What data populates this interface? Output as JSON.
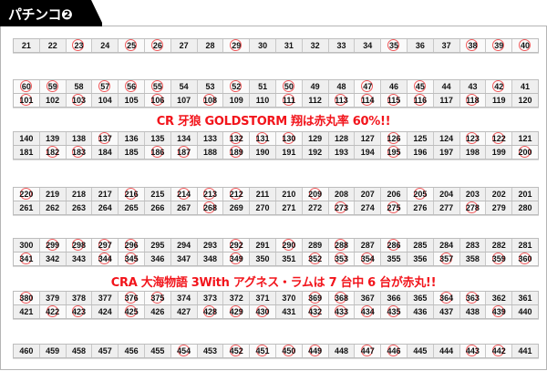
{
  "header": {
    "title": "パチンコ❷",
    "background": "#000000"
  },
  "colors": {
    "circle": "#f0595b",
    "caption": "#f2141b"
  },
  "captions": [
    "CR 牙狼 GOLDSTORM 翔は赤丸率 60%!!",
    "CRA 大海物語 3With アグネス・ラムは 7 台中 6 台が赤丸!!"
  ],
  "blocks": [
    {
      "rows": [
        {
          "numbers": [
            21,
            22,
            23,
            24,
            25,
            26,
            27,
            28,
            29,
            30,
            31,
            32,
            33,
            34,
            35,
            36,
            37,
            38,
            39,
            40
          ],
          "circled": [
            23,
            25,
            26,
            29,
            35,
            38,
            39,
            40
          ]
        }
      ]
    },
    {
      "rows": [
        {
          "numbers": [
            60,
            59,
            58,
            57,
            56,
            55,
            54,
            53,
            52,
            51,
            50,
            49,
            48,
            47,
            46,
            45,
            44,
            43,
            42,
            41
          ],
          "circled": [
            60,
            59,
            57,
            56,
            55,
            52,
            50,
            47,
            45,
            42
          ]
        },
        {
          "numbers": [
            101,
            102,
            103,
            104,
            105,
            106,
            107,
            108,
            109,
            110,
            111,
            112,
            113,
            114,
            115,
            116,
            117,
            118,
            119,
            120
          ],
          "circled": [
            101,
            103,
            106,
            108,
            111,
            113,
            114,
            115,
            116,
            118
          ]
        }
      ]
    },
    {
      "rows": [
        {
          "numbers": [
            140,
            139,
            138,
            137,
            136,
            135,
            134,
            133,
            132,
            131,
            130,
            129,
            128,
            127,
            126,
            125,
            124,
            123,
            122,
            121
          ],
          "circled": [
            137,
            132,
            131,
            130,
            126,
            123,
            122
          ]
        },
        {
          "numbers": [
            181,
            182,
            183,
            184,
            185,
            186,
            187,
            188,
            189,
            190,
            191,
            192,
            193,
            194,
            195,
            196,
            197,
            198,
            199,
            200
          ],
          "circled": [
            182,
            183,
            186,
            187,
            189,
            195,
            200
          ]
        }
      ]
    },
    {
      "rows": [
        {
          "numbers": [
            220,
            219,
            218,
            217,
            216,
            215,
            214,
            213,
            212,
            211,
            210,
            209,
            208,
            207,
            206,
            205,
            204,
            203,
            202,
            201
          ],
          "circled": [
            220,
            216,
            214,
            213,
            212,
            209,
            205
          ]
        },
        {
          "numbers": [
            261,
            262,
            263,
            264,
            265,
            266,
            267,
            268,
            269,
            270,
            271,
            272,
            273,
            274,
            275,
            276,
            277,
            278,
            279,
            280
          ],
          "circled": [
            268,
            273,
            275,
            278
          ]
        }
      ]
    },
    {
      "rows": [
        {
          "numbers": [
            300,
            299,
            298,
            297,
            296,
            295,
            294,
            293,
            292,
            291,
            290,
            289,
            288,
            287,
            286,
            285,
            284,
            283,
            282,
            281
          ],
          "circled": [
            299,
            298,
            297,
            296,
            292,
            290,
            288,
            286
          ]
        },
        {
          "numbers": [
            341,
            342,
            343,
            344,
            345,
            346,
            347,
            348,
            349,
            350,
            351,
            352,
            353,
            354,
            355,
            356,
            357,
            358,
            359,
            360
          ],
          "circled": [
            341,
            344,
            345,
            349,
            352,
            353,
            354,
            357,
            359,
            360
          ]
        }
      ]
    },
    {
      "rows": [
        {
          "numbers": [
            380,
            379,
            378,
            377,
            376,
            375,
            374,
            373,
            372,
            371,
            370,
            369,
            368,
            367,
            366,
            365,
            364,
            363,
            362,
            361
          ],
          "circled": [
            380,
            376,
            375,
            369,
            368,
            364,
            363
          ]
        },
        {
          "numbers": [
            421,
            422,
            423,
            424,
            425,
            426,
            427,
            428,
            429,
            430,
            431,
            432,
            433,
            434,
            435,
            436,
            437,
            438,
            439,
            440
          ],
          "circled": [
            422,
            423,
            425,
            428,
            429,
            430,
            432,
            433,
            434,
            435,
            439
          ]
        }
      ]
    },
    {
      "rows": [
        {
          "numbers": [
            460,
            459,
            458,
            457,
            456,
            455,
            454,
            453,
            452,
            451,
            450,
            449,
            448,
            447,
            446,
            445,
            444,
            443,
            442,
            441
          ],
          "circled": [
            454,
            452,
            451,
            450,
            449,
            447,
            446,
            443,
            442
          ]
        }
      ]
    }
  ]
}
